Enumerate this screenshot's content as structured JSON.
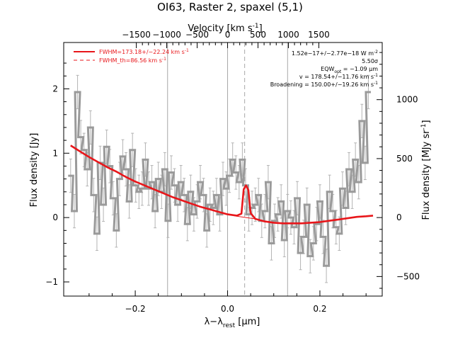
{
  "chart_data": {
    "type": "line",
    "title": "OI63, Raster 2, spaxel (5,1)",
    "xlabel": "λ−λ",
    "xlabel_sub": "rest",
    "xlabel_unit": " [μm]",
    "ylabel": "Flux density [Jy]",
    "top_axis_label": "Velocity [km s",
    "top_axis_label_sup": "-1",
    "top_axis_label_end": "]",
    "right_axis_label": "Flux density [MJy sr",
    "right_axis_label_sup": "-1",
    "right_axis_label_end": "]",
    "xlim": [
      -0.355,
      0.335
    ],
    "ylim": [
      -1.22,
      2.72
    ],
    "x_ticks": [
      -0.2,
      0.0,
      0.2
    ],
    "x_tick_labels": [
      "−0.2",
      "0.0",
      "0.2"
    ],
    "y_ticks": [
      -1,
      0,
      1,
      2
    ],
    "y_tick_labels": [
      "−1",
      "0",
      "1",
      "2"
    ],
    "top_ticks": [
      -1500,
      -1000,
      -500,
      0,
      500,
      1000,
      1500
    ],
    "top_tick_labels": [
      "−1500",
      "−1000",
      "−500",
      "0",
      "500",
      "1000",
      "1500"
    ],
    "top_axis_scale": 0.0001318,
    "right_ticks": [
      -500,
      0,
      500,
      1000
    ],
    "right_tick_labels": [
      "−500",
      "0",
      "500",
      "1000"
    ],
    "right_axis_scale": 0.001832,
    "grid": false,
    "vertical_lines": [
      {
        "x": -0.13,
        "style": "solid"
      },
      {
        "x": 0.0,
        "style": "solid"
      },
      {
        "x": 0.13,
        "style": "solid"
      },
      {
        "x": 0.037,
        "style": "dashed"
      }
    ],
    "legend": {
      "placement": "top-left",
      "items": [
        {
          "text": "FWHM=173.18+/−22.24 km s",
          "sup": "-1",
          "style": "solid",
          "color": "#e8161a"
        },
        {
          "text": "FWHM_th=86.56 km s",
          "sup": "-1",
          "style": "dashed",
          "color": "#e8161a"
        }
      ]
    },
    "annotations": [
      {
        "text": "1.52e−17+/−2.77e−18 W m",
        "sup": "-2"
      },
      {
        "text": "5.50σ"
      },
      {
        "text": "EQW",
        "sub": "opt",
        "text_end": " = −1.09 μm"
      },
      {
        "text": "v = 178.54+/−11.76 km s",
        "sup": "-1"
      },
      {
        "text": "Broadening = 150.00+/−19.26 km s",
        "sup": "-1"
      }
    ],
    "series": [
      {
        "style": "step-with-errorbars",
        "color": "#9a9a9a",
        "x": [
          -0.34,
          -0.332,
          -0.325,
          -0.318,
          -0.311,
          -0.304,
          -0.297,
          -0.29,
          -0.283,
          -0.276,
          -0.269,
          -0.262,
          -0.255,
          -0.248,
          -0.241,
          -0.234,
          -0.227,
          -0.22,
          -0.213,
          -0.206,
          -0.199,
          -0.192,
          -0.185,
          -0.178,
          -0.171,
          -0.164,
          -0.157,
          -0.15,
          -0.143,
          -0.136,
          -0.129,
          -0.122,
          -0.115,
          -0.108,
          -0.101,
          -0.094,
          -0.087,
          -0.08,
          -0.073,
          -0.066,
          -0.059,
          -0.052,
          -0.045,
          -0.038,
          -0.031,
          -0.024,
          -0.017,
          -0.01,
          -0.003,
          0.004,
          0.011,
          0.018,
          0.025,
          0.032,
          0.039,
          0.046,
          0.053,
          0.06,
          0.067,
          0.074,
          0.081,
          0.088,
          0.095,
          0.102,
          0.109,
          0.116,
          0.123,
          0.13,
          0.137,
          0.144,
          0.151,
          0.158,
          0.165,
          0.172,
          0.179,
          0.186,
          0.193,
          0.2,
          0.207,
          0.214,
          0.221,
          0.228,
          0.235,
          0.242,
          0.249,
          0.256,
          0.263,
          0.27,
          0.277,
          0.284,
          0.291,
          0.298,
          0.305
        ],
        "values": [
          0.65,
          0.1,
          1.95,
          1.25,
          1.05,
          0.75,
          1.4,
          0.35,
          -0.25,
          0.85,
          0.2,
          1.1,
          0.8,
          0.3,
          -0.2,
          0.6,
          0.95,
          0.75,
          0.25,
          1.05,
          0.5,
          0.4,
          0.45,
          0.9,
          0.45,
          0.55,
          0.1,
          0.6,
          0.4,
          0.75,
          -0.05,
          0.7,
          0.5,
          0.2,
          0.55,
          0.35,
          -0.1,
          0.4,
          0.05,
          0.25,
          0.55,
          0.35,
          -0.2,
          0.2,
          0.15,
          0.35,
          0.05,
          0.6,
          0.45,
          0.65,
          0.9,
          0.7,
          0.55,
          0.9,
          0.5,
          0.05,
          0.15,
          0.2,
          0.35,
          -0.05,
          0.1,
          0.55,
          -0.4,
          -0.05,
          0.05,
          0.25,
          -0.35,
          0.1,
          0.0,
          -0.15,
          0.3,
          -0.55,
          -0.3,
          0.2,
          -0.6,
          -0.4,
          -0.1,
          0.25,
          -0.3,
          -0.75,
          0.4,
          0.1,
          -0.15,
          -0.25,
          0.45,
          0.15,
          0.75,
          0.4,
          0.9,
          0.55,
          1.5,
          0.85,
          1.95
        ],
        "error": 0.26
      },
      {
        "style": "fit",
        "color": "#e8161a",
        "x": [
          -0.34,
          -0.32,
          -0.3,
          -0.28,
          -0.26,
          -0.24,
          -0.22,
          -0.2,
          -0.18,
          -0.16,
          -0.14,
          -0.12,
          -0.1,
          -0.08,
          -0.06,
          -0.04,
          -0.02,
          0.0,
          0.02,
          0.03,
          0.035,
          0.04,
          0.045,
          0.05,
          0.06,
          0.08,
          0.1,
          0.12,
          0.14,
          0.16,
          0.18,
          0.2,
          0.22,
          0.24,
          0.26,
          0.28,
          0.3,
          0.315
        ],
        "values": [
          1.12,
          1.03,
          0.94,
          0.86,
          0.78,
          0.71,
          0.63,
          0.56,
          0.5,
          0.44,
          0.38,
          0.32,
          0.27,
          0.22,
          0.17,
          0.13,
          0.09,
          0.05,
          0.03,
          0.06,
          0.44,
          0.5,
          0.43,
          0.07,
          -0.02,
          -0.06,
          -0.08,
          -0.09,
          -0.09,
          -0.09,
          -0.08,
          -0.07,
          -0.05,
          -0.03,
          -0.01,
          0.01,
          0.02,
          0.03
        ]
      },
      {
        "style": "fit-thin",
        "color": "#e8161a",
        "x": [
          -0.34,
          -0.3,
          -0.26,
          -0.22,
          -0.18,
          -0.14,
          -0.1,
          -0.06,
          -0.02,
          0.0,
          0.02,
          0.04,
          0.06,
          0.08,
          0.1,
          0.14,
          0.18,
          0.22,
          0.26,
          0.3,
          0.315
        ],
        "values": [
          1.12,
          0.94,
          0.78,
          0.63,
          0.5,
          0.38,
          0.27,
          0.17,
          0.09,
          0.05,
          0.02,
          0.0,
          -0.02,
          -0.06,
          -0.08,
          -0.09,
          -0.08,
          -0.05,
          -0.01,
          0.02,
          0.03
        ]
      }
    ]
  }
}
